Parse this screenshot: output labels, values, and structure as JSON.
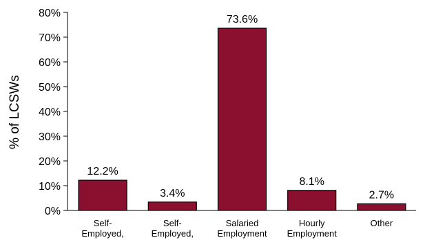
{
  "chart_data": {
    "type": "bar",
    "title": "",
    "xlabel": "",
    "ylabel": "% of LCSWs",
    "categories": [
      [
        "Self-",
        "Employed,"
      ],
      [
        "Self-",
        "Employed,"
      ],
      [
        "Salaried",
        "Employment"
      ],
      [
        "Hourly",
        "Employment"
      ],
      [
        "Other"
      ]
    ],
    "values": [
      12.2,
      3.4,
      73.6,
      8.1,
      2.7
    ],
    "value_labels": [
      "12.2%",
      "3.4%",
      "73.6%",
      "8.1%",
      "2.7%"
    ],
    "ylim": [
      0,
      80
    ],
    "yticks": [
      "0%",
      "10%",
      "20%",
      "30%",
      "40%",
      "50%",
      "60%",
      "70%",
      "80%"
    ],
    "grid": false,
    "legend": "none",
    "colors": {
      "bar": "#8b1030",
      "axis": "#000000"
    }
  }
}
